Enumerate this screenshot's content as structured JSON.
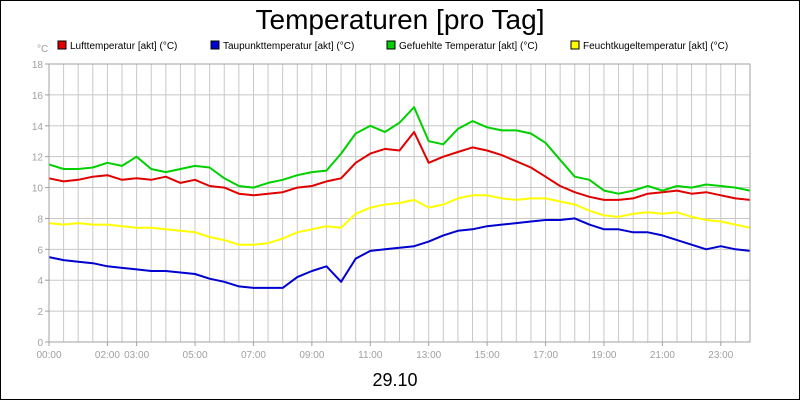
{
  "chart_data": {
    "type": "line",
    "title": "Temperaturen [pro Tag]",
    "ylabel": "°C",
    "xlabel": "",
    "date_label": "29.10",
    "ylim": [
      0,
      18
    ],
    "yticks": [
      0,
      2,
      4,
      6,
      8,
      10,
      12,
      14,
      16,
      18
    ],
    "xlim": [
      0,
      24
    ],
    "xticks": [
      {
        "x": 0,
        "label": "00:00"
      },
      {
        "x": 2,
        "label": "02:00"
      },
      {
        "x": 3,
        "label": "03:00"
      },
      {
        "x": 5,
        "label": "05:00"
      },
      {
        "x": 7,
        "label": "07:00"
      },
      {
        "x": 9,
        "label": "09:00"
      },
      {
        "x": 11,
        "label": "11:00"
      },
      {
        "x": 13,
        "label": "13:00"
      },
      {
        "x": 15,
        "label": "15:00"
      },
      {
        "x": 17,
        "label": "17:00"
      },
      {
        "x": 19,
        "label": "19:00"
      },
      {
        "x": 21,
        "label": "21:00"
      },
      {
        "x": 23,
        "label": "23:00"
      }
    ],
    "grid": true,
    "legend_position": "top",
    "x": [
      0,
      0.5,
      1,
      1.5,
      2,
      2.5,
      3,
      3.5,
      4,
      4.5,
      5,
      5.5,
      6,
      6.5,
      7,
      7.5,
      8,
      8.5,
      9,
      9.5,
      10,
      10.5,
      11,
      11.5,
      12,
      12.5,
      13,
      13.5,
      14,
      14.5,
      15,
      15.5,
      16,
      16.5,
      17,
      17.5,
      18,
      18.5,
      19,
      19.5,
      20,
      20.5,
      21,
      21.5,
      22,
      22.5,
      23,
      23.5,
      24
    ],
    "series": [
      {
        "name": "Lufttemperatur [akt] (°C)",
        "color": "#e00000",
        "values": [
          10.6,
          10.4,
          10.5,
          10.7,
          10.8,
          10.5,
          10.6,
          10.5,
          10.7,
          10.3,
          10.5,
          10.1,
          10.0,
          9.6,
          9.5,
          9.6,
          9.7,
          10.0,
          10.1,
          10.4,
          10.6,
          11.6,
          12.2,
          12.5,
          12.4,
          13.6,
          11.6,
          12.0,
          12.3,
          12.6,
          12.4,
          12.1,
          11.7,
          11.3,
          10.7,
          10.1,
          9.7,
          9.4,
          9.2,
          9.2,
          9.3,
          9.6,
          9.7,
          9.8,
          9.6,
          9.7,
          9.5,
          9.3,
          9.2
        ]
      },
      {
        "name": "Taupunkttemperatur [akt] (°C)",
        "color": "#0000d0",
        "values": [
          5.5,
          5.3,
          5.2,
          5.1,
          4.9,
          4.8,
          4.7,
          4.6,
          4.6,
          4.5,
          4.4,
          4.1,
          3.9,
          3.6,
          3.5,
          3.5,
          3.5,
          4.2,
          4.6,
          4.9,
          3.9,
          5.4,
          5.9,
          6.0,
          6.1,
          6.2,
          6.5,
          6.9,
          7.2,
          7.3,
          7.5,
          7.6,
          7.7,
          7.8,
          7.9,
          7.9,
          8.0,
          7.6,
          7.3,
          7.3,
          7.1,
          7.1,
          6.9,
          6.6,
          6.3,
          6.0,
          6.2,
          6.0,
          5.9
        ]
      },
      {
        "name": "Gefuehlte Temperatur [akt] (°C)",
        "color": "#00d000",
        "values": [
          11.5,
          11.2,
          11.2,
          11.3,
          11.6,
          11.4,
          12.0,
          11.2,
          11.0,
          11.2,
          11.4,
          11.3,
          10.6,
          10.1,
          10.0,
          10.3,
          10.5,
          10.8,
          11.0,
          11.1,
          12.2,
          13.5,
          14.0,
          13.6,
          14.2,
          15.2,
          13.0,
          12.8,
          13.8,
          14.3,
          13.9,
          13.7,
          13.7,
          13.5,
          12.9,
          11.8,
          10.7,
          10.5,
          9.8,
          9.6,
          9.8,
          10.1,
          9.8,
          10.1,
          10.0,
          10.2,
          10.1,
          10.0,
          9.8
        ]
      },
      {
        "name": "Feuchtkugeltemperatur [akt] (°C)",
        "color": "#ffff00",
        "values": [
          7.7,
          7.6,
          7.7,
          7.6,
          7.6,
          7.5,
          7.4,
          7.4,
          7.3,
          7.2,
          7.1,
          6.8,
          6.6,
          6.3,
          6.3,
          6.4,
          6.7,
          7.1,
          7.3,
          7.5,
          7.4,
          8.3,
          8.7,
          8.9,
          9.0,
          9.2,
          8.7,
          8.9,
          9.3,
          9.5,
          9.5,
          9.3,
          9.2,
          9.3,
          9.3,
          9.1,
          8.9,
          8.5,
          8.2,
          8.1,
          8.3,
          8.4,
          8.3,
          8.4,
          8.1,
          7.9,
          7.8,
          7.6,
          7.4
        ]
      }
    ]
  },
  "colors": {
    "grid": "#c8c8c8",
    "axis": "#a0a0a0",
    "tick_label": "#a0a0a0"
  }
}
